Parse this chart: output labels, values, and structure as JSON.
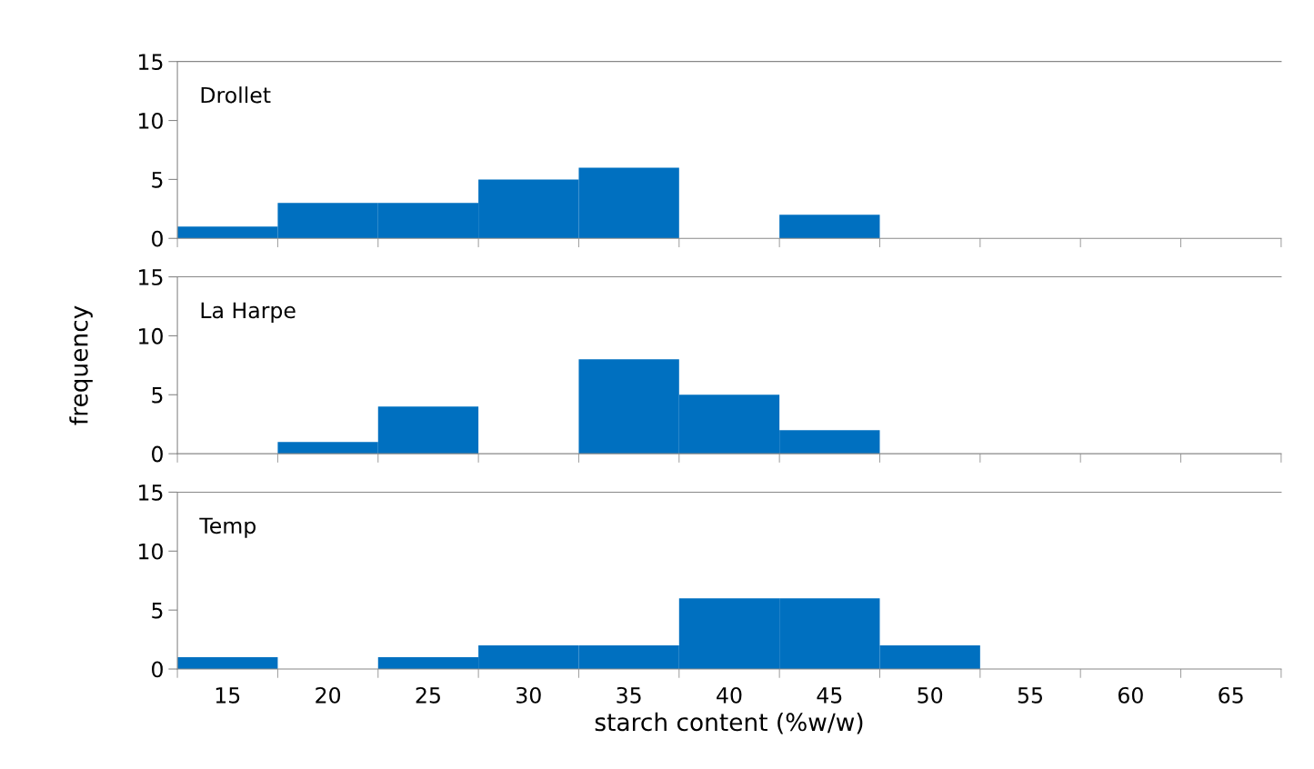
{
  "chart_data": [
    {
      "type": "bar",
      "categories": [
        "15",
        "20",
        "25",
        "30",
        "35",
        "40",
        "45",
        "50",
        "55",
        "60",
        "65"
      ],
      "values": [
        1,
        3,
        3,
        5,
        6,
        0,
        2,
        0,
        0,
        0,
        0
      ],
      "color": "#0070c0",
      "ylim": [
        0,
        15
      ],
      "yticks": [
        0,
        5,
        10,
        15
      ],
      "tick_labels": "y",
      "annotations": [
        "Drollet"
      ]
    },
    {
      "type": "bar",
      "categories": [
        "15",
        "20",
        "25",
        "30",
        "35",
        "40",
        "45",
        "50",
        "55",
        "60",
        "65"
      ],
      "values": [
        0,
        1,
        4,
        0,
        8,
        5,
        2,
        0,
        0,
        0,
        0
      ],
      "color": "#0070c0",
      "ylim": [
        0,
        15
      ],
      "yticks": [
        0,
        5,
        10,
        15
      ],
      "tick_labels": "y",
      "ylabel": "frequency",
      "annotations": [
        "La Harpe"
      ]
    },
    {
      "type": "bar",
      "categories": [
        "15",
        "20",
        "25",
        "30",
        "35",
        "40",
        "45",
        "50",
        "55",
        "60",
        "65"
      ],
      "values": [
        1,
        0,
        1,
        2,
        2,
        6,
        6,
        2,
        0,
        0,
        0
      ],
      "color": "#0070c0",
      "ylim": [
        0,
        15
      ],
      "yticks": [
        0,
        5,
        10,
        15
      ],
      "xlabel": "starch content (%w/w)",
      "annotations": [
        "Temp"
      ]
    }
  ]
}
